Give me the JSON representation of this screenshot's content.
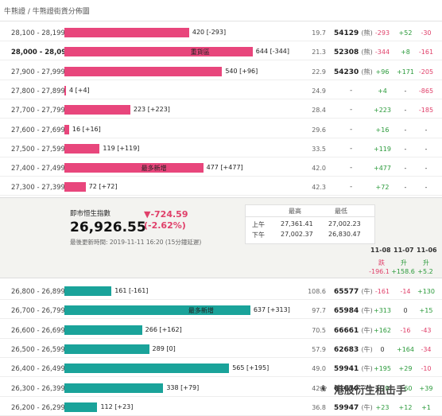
{
  "breadcrumb": "牛熊證 / 牛熊證街貨分佈圖",
  "upper_rows": [
    {
      "range": "28,100 - 28,199",
      "bar": "420 [-293]",
      "mid": "19.7",
      "price": "54129",
      "code": "(熊)",
      "c1": "-293",
      "c2": "+52",
      "c3": "-30",
      "bold": false,
      "barfrac": 0.53
    },
    {
      "range": "28,000 - 28,099",
      "bar": "644 [-344]",
      "label": "重貨區",
      "mid": "21.3",
      "price": "52308",
      "code": "(熊)",
      "c1": "-344",
      "c2": "+8",
      "c3": "-161",
      "bold": true,
      "barfrac": 0.8
    },
    {
      "range": "27,900 - 27,999",
      "bar": "540 [+96]",
      "mid": "22.9",
      "price": "54230",
      "code": "(熊)",
      "c1": "+96",
      "c2": "+171",
      "c3": "-205",
      "bold": false,
      "barfrac": 0.67
    },
    {
      "range": "27,800 - 27,899",
      "bar": "4 [+4]",
      "mid": "24.9",
      "price": "-",
      "code": "",
      "c1": "+4",
      "c2": "-",
      "c3": "-865",
      "bold": false,
      "barfrac": 0.005
    },
    {
      "range": "27,700 - 27,799",
      "bar": "223 [+223]",
      "mid": "28.4",
      "price": "-",
      "code": "",
      "c1": "+223",
      "c2": "-",
      "c3": "-185",
      "bold": false,
      "barfrac": 0.28
    },
    {
      "range": "27,600 - 27,699",
      "bar": "16 [+16]",
      "mid": "29.6",
      "price": "-",
      "code": "",
      "c1": "+16",
      "c2": "-",
      "c3": "-",
      "bold": false,
      "barfrac": 0.02
    },
    {
      "range": "27,500 - 27,599",
      "bar": "119 [+119]",
      "mid": "33.5",
      "price": "-",
      "code": "",
      "c1": "+119",
      "c2": "-",
      "c3": "-",
      "bold": false,
      "barfrac": 0.15
    },
    {
      "range": "27,400 - 27,499",
      "bar": "477 [+477]",
      "label": "最多新增",
      "mid": "42.0",
      "price": "-",
      "code": "",
      "c1": "+477",
      "c2": "-",
      "c3": "-",
      "bold": false,
      "barfrac": 0.59
    },
    {
      "range": "27,300 - 27,399",
      "bar": "72 [+72]",
      "mid": "42.3",
      "price": "-",
      "code": "",
      "c1": "+72",
      "c2": "-",
      "c3": "-",
      "bold": false,
      "barfrac": 0.09
    }
  ],
  "panel": {
    "label": "即市恒生指數",
    "value": "26,926.55",
    "change": "▼-724.59",
    "change_pct": "(-2.62%)",
    "updated": "最後更新時間: 2019-11-11 16:20 (15分鐘延遲)",
    "high_h": "最高",
    "low_h": "最低",
    "am": "上午",
    "am_high": "27,361.41",
    "am_low": "27,002.23",
    "pm": "下午",
    "pm_high": "27,002.37",
    "pm_low": "26,830.47",
    "dates": [
      "11-08",
      "11-07",
      "11-06"
    ],
    "dir": [
      "跌",
      "升",
      "升"
    ],
    "dval": [
      "-196.1",
      "+158.6",
      "+5.2"
    ]
  },
  "lower_rows": [
    {
      "range": "26,800 - 26,899",
      "bar": "161 [-161]",
      "mid": "108.6",
      "price": "65577",
      "code": "(牛)",
      "c1": "-161",
      "c2": "-14",
      "c3": "+130",
      "barfrac": 0.2
    },
    {
      "range": "26,700 - 26,799",
      "bar": "637 [+313]",
      "label": "最多新增",
      "mid": "97.7",
      "price": "65984",
      "code": "(牛)",
      "c1": "+313",
      "c2": "0",
      "c3": "+15",
      "barfrac": 0.79
    },
    {
      "range": "26,600 - 26,699",
      "bar": "266 [+162]",
      "mid": "70.5",
      "price": "66661",
      "code": "(牛)",
      "c1": "+162",
      "c2": "-16",
      "c3": "-43",
      "barfrac": 0.33
    },
    {
      "range": "26,500 - 26,599",
      "bar": "289 [0]",
      "mid": "57.9",
      "price": "62683",
      "code": "(牛)",
      "c1": "0",
      "c2": "+164",
      "c3": "-34",
      "barfrac": 0.36
    },
    {
      "range": "26,400 - 26,499",
      "bar": "565 [+195]",
      "mid": "49.0",
      "price": "59941",
      "code": "(牛)",
      "c1": "+195",
      "c2": "+29",
      "c3": "-10",
      "barfrac": 0.7
    },
    {
      "range": "26,300 - 26,399",
      "bar": "338 [+79]",
      "mid": "42.1",
      "price": "61010",
      "code": "(牛)",
      "c1": "+79",
      "c2": "+60",
      "c3": "+39",
      "barfrac": 0.42
    },
    {
      "range": "26,200 - 26,299",
      "bar": "112 [+23]",
      "mid": "36.8",
      "price": "59947",
      "code": "(牛)",
      "c1": "+23",
      "c2": "+12",
      "c3": "+1",
      "barfrac": 0.14
    }
  ],
  "watermark": "港股衍生租击手"
}
